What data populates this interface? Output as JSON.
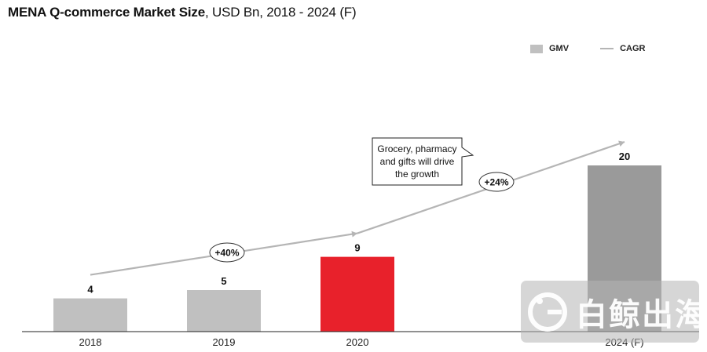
{
  "title": {
    "bold": "MENA Q-commerce Market Size",
    "rest": ", USD Bn, 2018 - 2024 (F)"
  },
  "legend": {
    "bar_label": "GMV",
    "line_label": "CAGR"
  },
  "colors": {
    "bar": "#c0c0c0",
    "highlight": "#e8212b",
    "forecast": "#9a9a9a",
    "cagr_line": "#b5b5b5"
  },
  "chart_data": {
    "type": "bar",
    "title": "MENA Q-commerce Market Size, USD Bn, 2018 - 2024 (F)",
    "categories": [
      "2018",
      "2019",
      "2020",
      "2024 (F)"
    ],
    "series": [
      {
        "name": "GMV",
        "values": [
          4,
          5,
          9,
          20
        ]
      }
    ],
    "data_labels": [
      "4",
      "5",
      "9",
      "20"
    ],
    "highlight_category": "2020",
    "forecast_category": "2024 (F)",
    "xlabel": "",
    "ylabel": "USD Bn",
    "ylim": [
      0,
      25
    ],
    "cagr": [
      {
        "from": "2018",
        "to": "2020",
        "label": "+40%"
      },
      {
        "from": "2020",
        "to": "2024 (F)",
        "label": "+24%"
      }
    ],
    "annotation": "Grocery, pharmacy and gifts will drive the growth"
  },
  "watermark": {
    "text": "白鲸出海"
  }
}
